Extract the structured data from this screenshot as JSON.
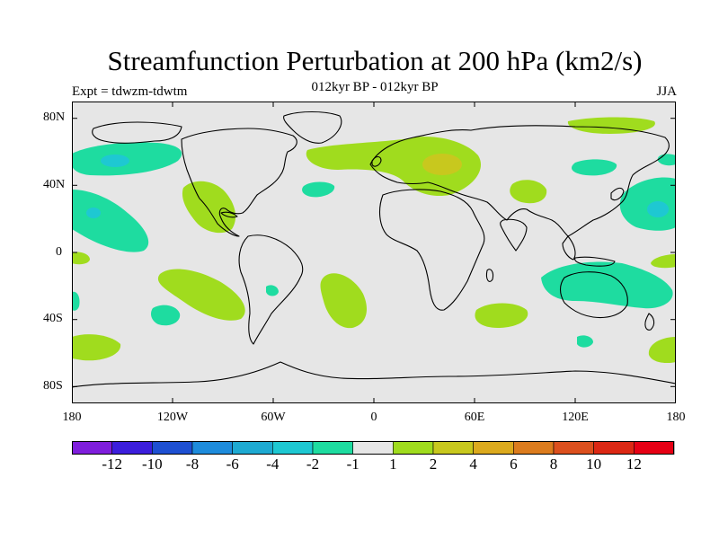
{
  "title": "Streamfunction Perturbation at 200 hPa (km2/s)",
  "subtitle": "012kyr BP - 012kyr BP",
  "experiment": "Expt = tdwzm-tdwtm",
  "season": "JJA",
  "lat_labels": [
    "80N",
    "40N",
    "0",
    "40S",
    "80S"
  ],
  "lon_labels": [
    "180",
    "120W",
    "60W",
    "0",
    "60E",
    "120E",
    "180"
  ],
  "colorbar": {
    "labels": [
      "-12",
      "-10",
      "-8",
      "-6",
      "-4",
      "-2",
      "-1",
      "1",
      "2",
      "4",
      "6",
      "8",
      "10",
      "12"
    ],
    "colors": [
      "#7f1edc",
      "#3c1edc",
      "#1e50d2",
      "#1e8cdc",
      "#1eaad2",
      "#1ec8d2",
      "#1edca0",
      "#e6e6e6",
      "#a0dc1e",
      "#c8c81e",
      "#dcaa1e",
      "#dc7c1e",
      "#dc501e",
      "#dc2814",
      "#e60014"
    ]
  },
  "colors": {
    "background": "#e6e6e6",
    "coast": "#000000"
  }
}
